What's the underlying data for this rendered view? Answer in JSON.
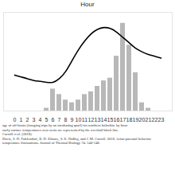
{
  "chart_data": {
    "type": "bar",
    "title": "Hour",
    "categories": [
      0,
      1,
      2,
      3,
      4,
      5,
      6,
      7,
      8,
      9,
      10,
      11,
      12,
      13,
      14,
      15,
      16,
      17,
      18,
      19,
      20,
      21,
      22,
      23
    ],
    "series": [
      {
        "type": "bar",
        "color": "#b8b8b8",
        "values": [
          0,
          0,
          0,
          0,
          0,
          0.5,
          4,
          3,
          2,
          1.5,
          2,
          3,
          3.5,
          4.5,
          5.5,
          6,
          10,
          16,
          12,
          7,
          1.5,
          0.5,
          0,
          0
        ]
      },
      {
        "type": "line",
        "color": "#000000",
        "axis": "y2",
        "values": [
          20,
          19,
          18,
          17,
          16.5,
          16,
          16,
          18,
          22,
          28,
          34,
          39,
          43,
          45.5,
          46.5,
          46,
          44,
          41,
          38,
          35,
          33,
          31.5,
          30.5,
          29.5
        ]
      }
    ],
    "ylim": [
      0,
      18
    ],
    "y2lim": [
      0,
      55
    ],
    "tick_labels": "x",
    "grid": false,
    "caption": [
      "age of off-bouts (foraging trips by an incubating quail) for northern bobwhite by hour",
      "ourly surface temperatures near nests are represented by the overlaid black line.",
      "Carroll et al. (2018).",
      "Davis, S. D. Fuhlendorf, R. D. Elmore, S. E. DuBay, and J. M. Carroll. 2018. Avian parental behavior",
      "temperature fluctuations. Journal of Thermal Biology 74: 140-148."
    ]
  }
}
